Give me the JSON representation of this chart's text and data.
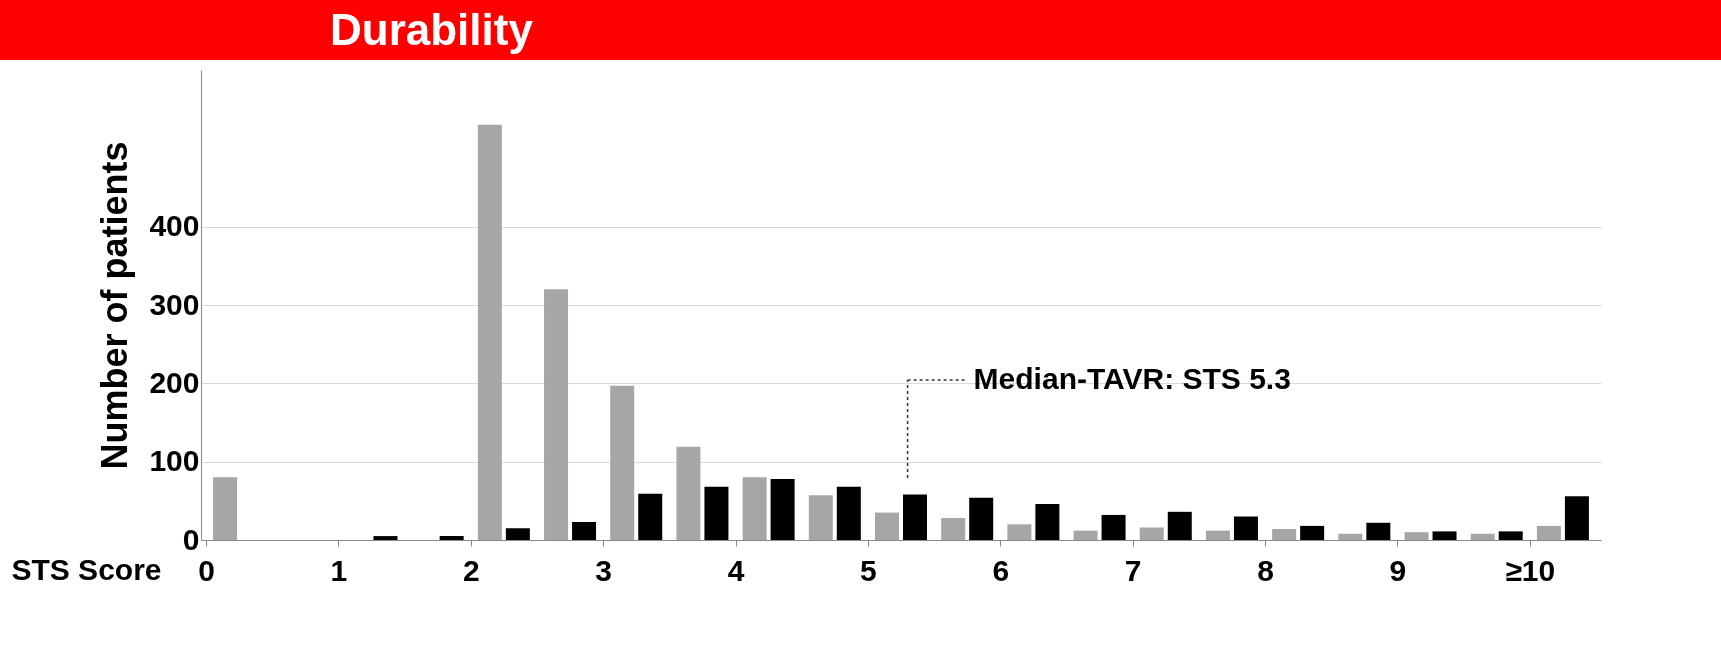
{
  "chart_data": {
    "type": "bar",
    "title": "Durability",
    "xlabel": "STS Score",
    "ylabel": "Number of patients",
    "x": [
      0.25,
      0.75,
      1.25,
      1.75,
      2.25,
      2.75,
      3.25,
      3.75,
      4.25,
      4.75,
      5.25,
      5.75,
      6.25,
      6.75,
      7.25,
      7.75,
      8.25,
      8.75,
      9.25,
      9.75,
      10.25
    ],
    "series": [
      {
        "color": "#a6a6a6",
        "values": [
          80,
          null,
          null,
          null,
          530,
          320,
          197,
          119,
          80,
          57,
          35,
          28,
          20,
          12,
          16,
          12,
          14,
          8,
          10,
          8,
          18
        ]
      },
      {
        "color": "#000000",
        "values": [
          0,
          0,
          5,
          5,
          15,
          23,
          59,
          68,
          78,
          68,
          58,
          54,
          46,
          32,
          36,
          30,
          18,
          22,
          11,
          11,
          56
        ]
      }
    ],
    "xlim": [
      0,
      10.5
    ],
    "xticks": [
      0,
      1,
      2,
      3,
      4,
      5,
      6,
      7,
      8,
      9,
      {
        "value": 10,
        "label": "≥10"
      }
    ],
    "ylim": [
      0,
      600
    ],
    "yticks": [
      0,
      100,
      200,
      300,
      400
    ],
    "grid": "y",
    "ref_lines": [
      {
        "axis": "x",
        "value": 5.3,
        "label": "Median-TAVR: STS 5.3",
        "color": "#333333",
        "line_style": "dotted"
      }
    ]
  }
}
